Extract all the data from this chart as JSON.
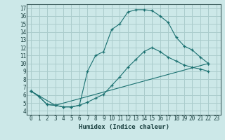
{
  "xlabel": "Humidex (Indice chaleur)",
  "bg_color": "#cce8e8",
  "grid_color": "#aacccc",
  "line_color": "#1a7070",
  "xlim": [
    -0.5,
    23.5
  ],
  "ylim": [
    3.5,
    17.5
  ],
  "xticks": [
    0,
    1,
    2,
    3,
    4,
    5,
    6,
    7,
    8,
    9,
    10,
    11,
    12,
    13,
    14,
    15,
    16,
    17,
    18,
    19,
    20,
    21,
    22,
    23
  ],
  "yticks": [
    4,
    5,
    6,
    7,
    8,
    9,
    10,
    11,
    12,
    13,
    14,
    15,
    16,
    17
  ],
  "line1_x": [
    0,
    1,
    2,
    3,
    4,
    5,
    6,
    7,
    8,
    9,
    10,
    11,
    12,
    13,
    14,
    15,
    16,
    17,
    18,
    19,
    20,
    21,
    22
  ],
  "line1_y": [
    6.5,
    5.8,
    4.8,
    4.7,
    4.5,
    4.5,
    4.7,
    9.0,
    11.0,
    11.5,
    14.3,
    15.0,
    16.5,
    16.8,
    16.8,
    16.7,
    16.0,
    15.2,
    13.3,
    12.2,
    11.7,
    10.8,
    10.0
  ],
  "line2_x": [
    0,
    1,
    2,
    3,
    4,
    5,
    6,
    7,
    8,
    9,
    10,
    11,
    12,
    13,
    14,
    15,
    16,
    17,
    18,
    19,
    20,
    21,
    22
  ],
  "line2_y": [
    6.5,
    5.8,
    4.8,
    4.7,
    4.5,
    4.5,
    4.7,
    5.1,
    5.6,
    6.1,
    7.2,
    8.3,
    9.5,
    10.5,
    11.5,
    12.0,
    11.5,
    10.8,
    10.3,
    9.8,
    9.5,
    9.3,
    9.0
  ],
  "line3_x": [
    0,
    3,
    22
  ],
  "line3_y": [
    6.5,
    4.7,
    10.0
  ],
  "tick_fontsize": 5.5,
  "xlabel_fontsize": 6.5,
  "xlabel_color": "#1a4040",
  "tick_color": "#1a4040"
}
